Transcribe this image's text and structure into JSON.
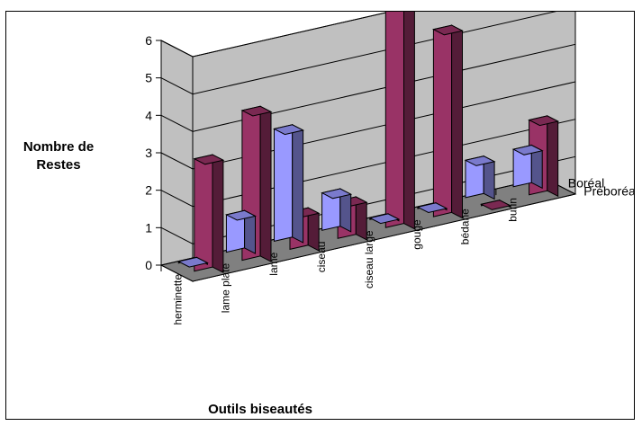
{
  "chart_data": {
    "type": "bar",
    "title": "",
    "ylabel": "Nombre de Restes",
    "xlabel": "Outils biseautés",
    "ylim": [
      0,
      6
    ],
    "yticks": [
      0,
      1,
      2,
      3,
      4,
      5,
      6
    ],
    "grid": true,
    "legend": "right",
    "categories": [
      "herminette",
      "lame plate",
      "lame",
      "ciseau",
      "ciseau large",
      "gouge",
      "bédane",
      "burin"
    ],
    "series": [
      {
        "name": "Boréal",
        "color": "#9999ff",
        "values": [
          0,
          1,
          3,
          1,
          0,
          0,
          1,
          1
        ]
      },
      {
        "name": "Préboréal",
        "color": "#993366",
        "values": [
          3,
          4,
          1,
          1,
          6,
          5,
          0,
          2
        ]
      }
    ],
    "colors": {
      "wall": "#c0c0c0",
      "floor": "#808080"
    }
  }
}
